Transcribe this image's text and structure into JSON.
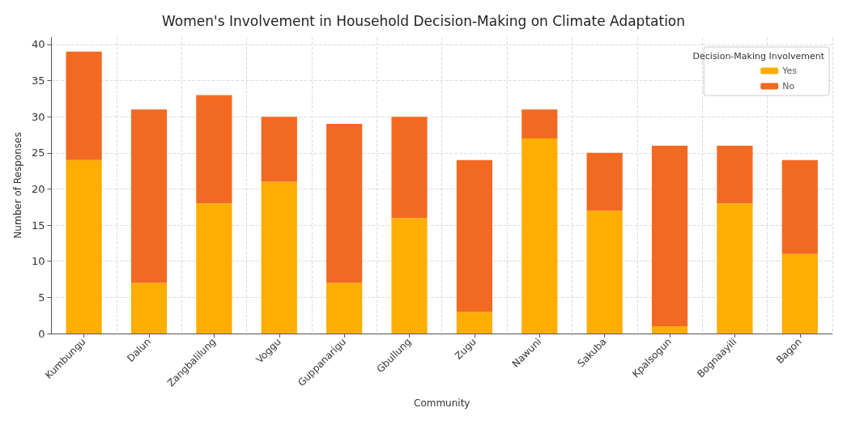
{
  "chart_data": {
    "type": "bar",
    "title": "Women's Involvement in Household Decision-Making on Climate Adaptation",
    "xlabel": "Community",
    "ylabel": "Number of Responses",
    "legend_title": "Decision-Making Involvement",
    "categories": [
      "Kumbungu",
      "Dalun",
      "Zangbalilung",
      "Voggu",
      "Guppanarigu",
      "Gbullung",
      "Zugu",
      "Nawuni",
      "Sakuba",
      "Kpalsogun",
      "Bognaayili",
      "Bagon"
    ],
    "series": [
      {
        "name": "Yes",
        "color": "#ffad00",
        "values": [
          24,
          7,
          18,
          21,
          7,
          16,
          3,
          27,
          17,
          1,
          18,
          11
        ]
      },
      {
        "name": "No",
        "color": "#f26a21",
        "values": [
          15,
          24,
          15,
          9,
          22,
          14,
          21,
          4,
          8,
          25,
          8,
          13
        ]
      }
    ],
    "stacked": true,
    "ylim": [
      0,
      41
    ],
    "yticks": [
      0,
      5,
      10,
      15,
      20,
      25,
      30,
      35,
      40
    ],
    "grid": true,
    "legend": "top right"
  }
}
